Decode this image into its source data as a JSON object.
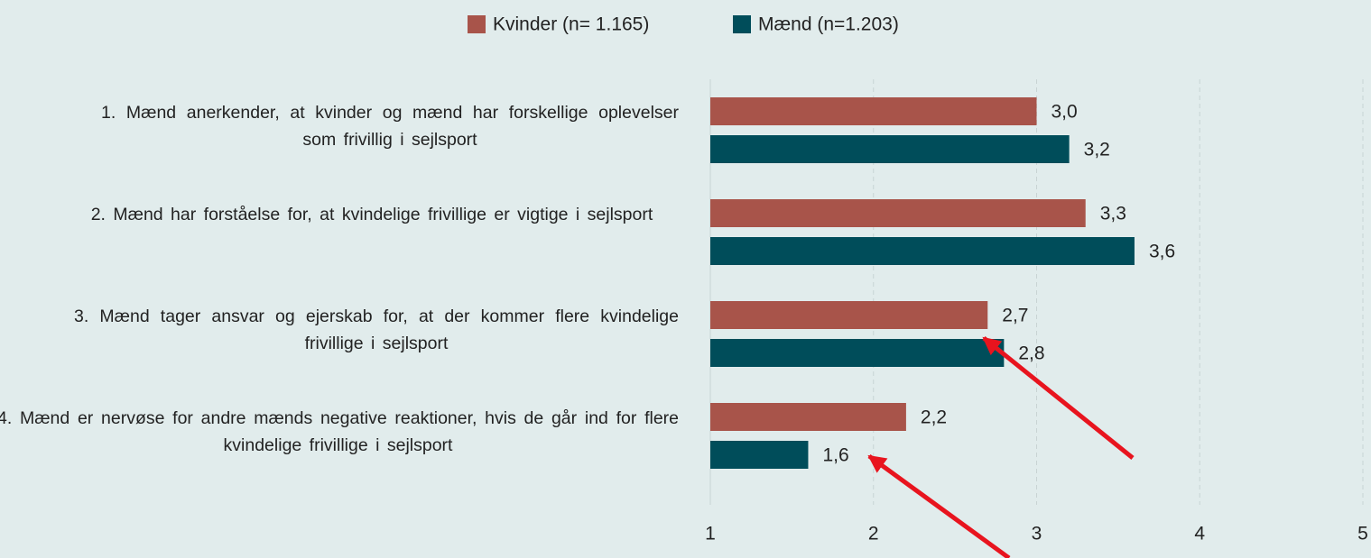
{
  "chart_data": {
    "type": "bar",
    "orientation": "horizontal",
    "categories": [
      "1. Mænd anerkender, at kvinder og mænd har forskellige oplevelser som frivillig i sejlsport",
      "2. Mænd har forståelse for, at kvindelige frivillige er vigtige i sejlsport",
      "3. Mænd tager ansvar og ejerskab for, at der kommer flere kvindelige frivillige i sejlsport",
      "4. Mænd er nervøse for andre mænds negative reaktioner, hvis de går ind for flere kvindelige frivillige i sejlsport"
    ],
    "series": [
      {
        "name": "Kvinder (n= 1.165)",
        "color": "#a8544a",
        "values": [
          3.0,
          3.3,
          2.7,
          2.2
        ],
        "value_labels": [
          "3,0",
          "3,3",
          "2,7",
          "2,2"
        ]
      },
      {
        "name": "Mænd (n=1.203)",
        "color": "#004d5a",
        "values": [
          3.2,
          3.6,
          2.8,
          1.6
        ],
        "value_labels": [
          "3,2",
          "3,6",
          "2,8",
          "1,6"
        ]
      }
    ],
    "xlim": [
      1,
      5
    ],
    "xticks": [
      1,
      2,
      3,
      4,
      5
    ],
    "grid": true,
    "legend": "top"
  }
}
